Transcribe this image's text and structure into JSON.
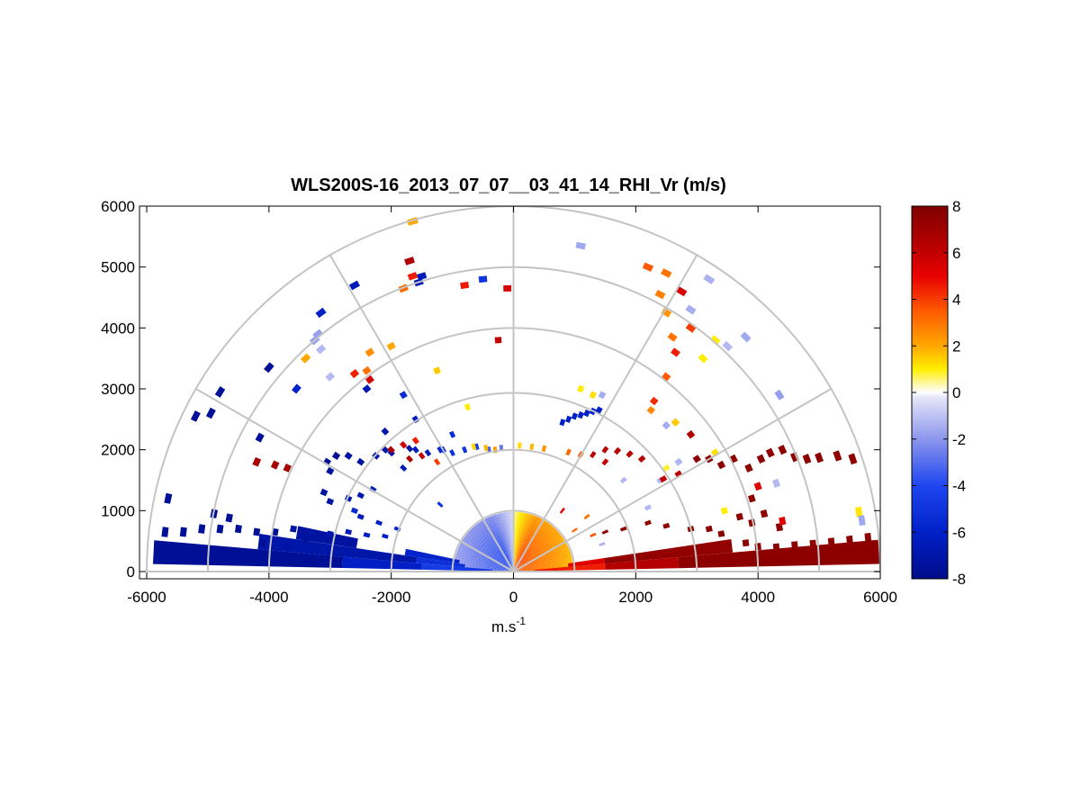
{
  "chart_data": {
    "type": "heatmap",
    "subtype": "polar-rhi-scan",
    "title": "WLS200S-16_2013_07_07__03_41_14_RHI_Vr (m/s)",
    "xlabel_base": "m.s",
    "xlabel_exponent": "-1",
    "ylabel": "",
    "xlim": [
      -6000,
      6000
    ],
    "ylim": [
      0,
      6000
    ],
    "xticks": [
      -6000,
      -4000,
      -2000,
      0,
      2000,
      4000,
      6000
    ],
    "yticks": [
      0,
      1000,
      2000,
      3000,
      4000,
      5000,
      6000
    ],
    "xtick_labels": [
      "-6000",
      "-4000",
      "-2000",
      "0",
      "2000",
      "4000",
      "6000"
    ],
    "ytick_labels": [
      "0",
      "1000",
      "2000",
      "3000",
      "4000",
      "5000",
      "6000"
    ],
    "range_rings_m": [
      1000,
      2000,
      3000,
      4000,
      5000,
      6000
    ],
    "spokes_deg": [
      30,
      60,
      90,
      120,
      150
    ],
    "colorbar": {
      "min": -8,
      "max": 8,
      "ticks": [
        8,
        6,
        4,
        2,
        0,
        -2,
        -4,
        -6,
        -8
      ],
      "tick_labels": [
        "8",
        "6",
        "4",
        "2",
        "0",
        "-2",
        "-4",
        "-6",
        "-8"
      ],
      "stops": [
        {
          "v": -8,
          "c": "#000c8a"
        },
        {
          "v": -6,
          "c": "#0020c8"
        },
        {
          "v": -4,
          "c": "#1e46f0"
        },
        {
          "v": -2,
          "c": "#8c96ec"
        },
        {
          "v": -0.2,
          "c": "#e6e6f8"
        },
        {
          "v": 0,
          "c": "#ffffff"
        },
        {
          "v": 0.4,
          "c": "#fff6a0"
        },
        {
          "v": 1,
          "c": "#ffee00"
        },
        {
          "v": 2,
          "c": "#ffa800"
        },
        {
          "v": 3.5,
          "c": "#ff5a00"
        },
        {
          "v": 5,
          "c": "#e80000"
        },
        {
          "v": 6.5,
          "c": "#b00000"
        },
        {
          "v": 8,
          "c": "#800000"
        }
      ]
    },
    "near_field": {
      "angle_min_deg": 2,
      "angle_max_deg": 178,
      "angle_step_deg": 3,
      "r_min_m": 30,
      "r_max_m": 950,
      "r_step_m": 50,
      "v_right": 4.5,
      "v_left": -4.5
    },
    "low_wedges": [
      {
        "a0": 1.2,
        "a1": 5.0,
        "r0": 350,
        "r1": 1500,
        "v": 4.5
      },
      {
        "a0": 1.2,
        "a1": 5.0,
        "r0": 1500,
        "r1": 2700,
        "v": 6.4
      },
      {
        "a0": 1.2,
        "a1": 5.0,
        "r0": 2700,
        "r1": 6000,
        "v": 7.6
      },
      {
        "a0": 5.0,
        "a1": 8.5,
        "r0": 900,
        "r1": 1500,
        "v": 5.2
      },
      {
        "a0": 5.0,
        "a1": 8.5,
        "r0": 1500,
        "r1": 3600,
        "v": 7.4
      },
      {
        "a0": 175.0,
        "a1": 178.8,
        "r0": 350,
        "r1": 1500,
        "v": -4.6
      },
      {
        "a0": 175.0,
        "a1": 178.8,
        "r0": 1500,
        "r1": 2800,
        "v": -6.1
      },
      {
        "a0": 175.0,
        "a1": 178.8,
        "r0": 2800,
        "r1": 5900,
        "v": -7.6
      },
      {
        "a0": 171.5,
        "a1": 175.0,
        "r0": 800,
        "r1": 1600,
        "v": -5.2
      },
      {
        "a0": 171.5,
        "a1": 175.0,
        "r0": 1600,
        "r1": 4200,
        "v": -7.0
      },
      {
        "a0": 168.0,
        "a1": 171.5,
        "r0": 900,
        "r1": 1800,
        "v": -5.8
      },
      {
        "a0": 168.0,
        "a1": 171.5,
        "r0": 2600,
        "r1": 3600,
        "v": -7.3
      }
    ],
    "range_gates": [
      {
        "x": 5800,
        "y": 550,
        "v": 7.6
      },
      {
        "x": 5500,
        "y": 510,
        "v": 7.6
      },
      {
        "x": 5200,
        "y": 480,
        "v": 7.6
      },
      {
        "x": 4900,
        "y": 450,
        "v": 7.6
      },
      {
        "x": 4600,
        "y": 430,
        "v": 7.6
      },
      {
        "x": 4300,
        "y": 400,
        "v": 7.6
      },
      {
        "x": 4000,
        "y": 410,
        "v": 7.6
      },
      {
        "x": 3800,
        "y": 470,
        "v": 7.6
      },
      {
        "x": 3400,
        "y": 620,
        "v": 7.6
      },
      {
        "x": 3200,
        "y": 700,
        "v": 7.6
      },
      {
        "x": 2900,
        "y": 700,
        "v": 7.6
      },
      {
        "x": 2500,
        "y": 750,
        "v": 7.6
      },
      {
        "x": 2200,
        "y": 800,
        "v": 7.6
      },
      {
        "x": 1800,
        "y": 700,
        "v": 7.6
      },
      {
        "x": 1500,
        "y": 650,
        "v": 7.3
      },
      {
        "x": 3700,
        "y": 900,
        "v": 7.6
      },
      {
        "x": 3900,
        "y": 1200,
        "v": 7.6
      },
      {
        "x": 3850,
        "y": 1700,
        "v": 7.6
      },
      {
        "x": 4050,
        "y": 1850,
        "v": 7.6
      },
      {
        "x": 4200,
        "y": 1950,
        "v": 7.6
      },
      {
        "x": 4400,
        "y": 2000,
        "v": 7.6
      },
      {
        "x": 4600,
        "y": 1880,
        "v": 7.6
      },
      {
        "x": 4800,
        "y": 1850,
        "v": 7.6
      },
      {
        "x": 5000,
        "y": 1870,
        "v": 7.6
      },
      {
        "x": 5300,
        "y": 1900,
        "v": 7.6
      },
      {
        "x": 5550,
        "y": 1850,
        "v": 7.6
      },
      {
        "x": 3600,
        "y": 1850,
        "v": 7.6
      },
      {
        "x": 3400,
        "y": 1750,
        "v": 7.6
      },
      {
        "x": 3200,
        "y": 1850,
        "v": 7.6
      },
      {
        "x": 3000,
        "y": 1850,
        "v": 7.6
      },
      {
        "x": 3900,
        "y": 800,
        "v": 7.6
      },
      {
        "x": 4350,
        "y": 730,
        "v": 7.6
      },
      {
        "x": 4100,
        "y": 950,
        "v": 7.6
      },
      {
        "x": 1500,
        "y": 2000,
        "v": 6.3
      },
      {
        "x": 1700,
        "y": 1980,
        "v": 6.3
      },
      {
        "x": 1900,
        "y": 1930,
        "v": 6.3
      },
      {
        "x": 2100,
        "y": 1850,
        "v": 6.3
      },
      {
        "x": 1300,
        "y": 1920,
        "v": 6.3
      },
      {
        "x": 900,
        "y": 1960,
        "v": 3.2
      },
      {
        "x": 1100,
        "y": 1920,
        "v": 3.5
      },
      {
        "x": 500,
        "y": 2020,
        "v": 2.4
      },
      {
        "x": 300,
        "y": 2050,
        "v": 1.8
      },
      {
        "x": 100,
        "y": 2070,
        "v": 1.3
      },
      {
        "x": 5650,
        "y": 980,
        "v": 1.1
      },
      {
        "x": 5700,
        "y": 840,
        "v": -1.6
      },
      {
        "x": 4400,
        "y": 830,
        "v": 5.2
      },
      {
        "x": 4000,
        "y": 1400,
        "v": 5.3
      },
      {
        "x": 1300,
        "y": 600,
        "v": 3.6
      },
      {
        "x": 1000,
        "y": 680,
        "v": 3.2
      },
      {
        "x": -5700,
        "y": 650,
        "v": -7.6
      },
      {
        "x": -5400,
        "y": 650,
        "v": -7.6
      },
      {
        "x": -5100,
        "y": 700,
        "v": -7.6
      },
      {
        "x": -4800,
        "y": 700,
        "v": -7.6
      },
      {
        "x": -4500,
        "y": 700,
        "v": -7.6
      },
      {
        "x": -4200,
        "y": 650,
        "v": -7.6
      },
      {
        "x": -3900,
        "y": 650,
        "v": -7.6
      },
      {
        "x": -3600,
        "y": 700,
        "v": -7.2
      },
      {
        "x": -3300,
        "y": 650,
        "v": -7.0
      },
      {
        "x": -3000,
        "y": 620,
        "v": -6.8
      },
      {
        "x": -2700,
        "y": 650,
        "v": -6.5
      },
      {
        "x": -2400,
        "y": 600,
        "v": -6.3
      },
      {
        "x": -2100,
        "y": 580,
        "v": -6.0
      },
      {
        "x": -1900,
        "y": 700,
        "v": -5.8
      },
      {
        "x": -2200,
        "y": 800,
        "v": -6.3
      },
      {
        "x": -2500,
        "y": 900,
        "v": -6.5
      },
      {
        "x": -4900,
        "y": 950,
        "v": -7.6
      },
      {
        "x": -4650,
        "y": 880,
        "v": -7.6
      },
      {
        "x": -3700,
        "y": 400,
        "v": -7.3
      },
      {
        "x": -3400,
        "y": 480,
        "v": -7.3
      },
      {
        "x": -4100,
        "y": 470,
        "v": -7.6
      },
      {
        "x": -5650,
        "y": 1200,
        "v": -7.6
      },
      {
        "x": -5200,
        "y": 2550,
        "v": -7.6
      },
      {
        "x": -4950,
        "y": 2600,
        "v": -7.6
      },
      {
        "x": -4800,
        "y": 2950,
        "v": -7.6
      },
      {
        "x": -4000,
        "y": 3350,
        "v": -7.6
      },
      {
        "x": -4150,
        "y": 2200,
        "v": -7.6
      },
      {
        "x": -3050,
        "y": 1800,
        "v": -7.5
      },
      {
        "x": -3000,
        "y": 1650,
        "v": -7.5
      },
      {
        "x": -2500,
        "y": 1800,
        "v": -7.3
      },
      {
        "x": -2250,
        "y": 1900,
        "v": -7.0
      },
      {
        "x": -2100,
        "y": 2000,
        "v": -7.0
      },
      {
        "x": -2000,
        "y": 1950,
        "v": -7.0
      },
      {
        "x": -1700,
        "y": 2020,
        "v": -7.0
      },
      {
        "x": -1200,
        "y": 2000,
        "v": -5.5
      },
      {
        "x": -1000,
        "y": 1950,
        "v": -5.0
      },
      {
        "x": -800,
        "y": 2000,
        "v": -4.8
      },
      {
        "x": -600,
        "y": 2050,
        "v": -4.5
      },
      {
        "x": -400,
        "y": 2000,
        "v": -3.5
      },
      {
        "x": -200,
        "y": 2030,
        "v": -2.8
      },
      {
        "x": -2700,
        "y": 1200,
        "v": -7.0
      },
      {
        "x": -2500,
        "y": 1250,
        "v": -6.8
      },
      {
        "x": -3000,
        "y": 1150,
        "v": -7.2
      },
      {
        "x": -3100,
        "y": 1300,
        "v": -7.2
      },
      {
        "x": -2300,
        "y": 1350,
        "v": -6.5
      },
      {
        "x": -1600,
        "y": 2500,
        "v": -6.2
      },
      {
        "x": -1800,
        "y": 1700,
        "v": -6.5
      },
      {
        "x": -2100,
        "y": 2300,
        "v": -7.0
      },
      {
        "x": -1000,
        "y": 2250,
        "v": -5.5
      },
      {
        "x": -2600,
        "y": 1000,
        "v": -5.5
      },
      {
        "x": -1200,
        "y": 1100,
        "v": -5.0
      },
      {
        "x": -3150,
        "y": 4250,
        "v": -6.0
      },
      {
        "x": -3550,
        "y": 3000,
        "v": -6.0
      },
      {
        "x": -2600,
        "y": 4700,
        "v": -6.5
      },
      {
        "x": -1500,
        "y": 4850,
        "v": -6.5
      },
      {
        "x": -1550,
        "y": 4750,
        "v": -6.5
      },
      {
        "x": -500,
        "y": 4800,
        "v": -5.0
      },
      {
        "x": -2400,
        "y": 3000,
        "v": -6.8
      },
      {
        "x": -3200,
        "y": 3900,
        "v": -1.8
      },
      {
        "x": -3250,
        "y": 3800,
        "v": -1.8
      },
      {
        "x": -3000,
        "y": 3200,
        "v": -1.2
      },
      {
        "x": -3150,
        "y": 3650,
        "v": -1.2
      },
      {
        "x": 1100,
        "y": 5350,
        "v": -1.6
      },
      {
        "x": 3200,
        "y": 4800,
        "v": -1.4
      },
      {
        "x": 3800,
        "y": 3850,
        "v": -1.6
      },
      {
        "x": 2900,
        "y": 4300,
        "v": -1.5
      },
      {
        "x": 3500,
        "y": 3700,
        "v": -1.2
      },
      {
        "x": 4350,
        "y": 2900,
        "v": -1.8
      },
      {
        "x": 1450,
        "y": 2900,
        "v": -1.5
      },
      {
        "x": 2500,
        "y": 2400,
        "v": -1.5
      },
      {
        "x": 1800,
        "y": 1500,
        "v": -1.2
      },
      {
        "x": 4300,
        "y": 1450,
        "v": -1.2
      },
      {
        "x": 2200,
        "y": 1050,
        "v": -1.2
      },
      {
        "x": 2400,
        "y": 1500,
        "v": -1.3
      },
      {
        "x": 2700,
        "y": 1800,
        "v": -1.3
      },
      {
        "x": -1800,
        "y": 2900,
        "v": -5.5
      },
      {
        "x": -2900,
        "y": 1900,
        "v": -7.6
      },
      {
        "x": -2700,
        "y": 1900,
        "v": -7.2
      },
      {
        "x": 800,
        "y": 2450,
        "v": -6.0
      },
      {
        "x": 1000,
        "y": 2550,
        "v": -6.0
      },
      {
        "x": 1200,
        "y": 2600,
        "v": -6.0
      },
      {
        "x": 1400,
        "y": 2650,
        "v": -6.0
      },
      {
        "x": 900,
        "y": 2500,
        "v": -6.0
      },
      {
        "x": 1100,
        "y": 2570,
        "v": -6.0
      },
      {
        "x": 1300,
        "y": 2630,
        "v": -6.0
      },
      {
        "x": -1150,
        "y": 2000,
        "v": -5.5
      },
      {
        "x": -1400,
        "y": 1950,
        "v": -6.5
      },
      {
        "x": -1600,
        "y": 2000,
        "v": -6.5
      },
      {
        "x": 1450,
        "y": 450,
        "v": -1.3
      },
      {
        "x": -4200,
        "y": 1800,
        "v": 6.8
      },
      {
        "x": -3900,
        "y": 1750,
        "v": 6.8
      },
      {
        "x": -3700,
        "y": 1700,
        "v": 6.8
      },
      {
        "x": -2350,
        "y": 3600,
        "v": 2.5
      },
      {
        "x": -2400,
        "y": 3300,
        "v": 3.0
      },
      {
        "x": -2350,
        "y": 3150,
        "v": 5.5
      },
      {
        "x": -2600,
        "y": 3250,
        "v": 4.5
      },
      {
        "x": -3400,
        "y": 3500,
        "v": 2.0
      },
      {
        "x": -1800,
        "y": 4650,
        "v": 3.2
      },
      {
        "x": -800,
        "y": 4700,
        "v": 4.6
      },
      {
        "x": -1250,
        "y": 3300,
        "v": 1.5
      },
      {
        "x": -1650,
        "y": 4850,
        "v": 4.5
      },
      {
        "x": -1700,
        "y": 5100,
        "v": 6.5
      },
      {
        "x": 2200,
        "y": 5000,
        "v": 3.5
      },
      {
        "x": 2500,
        "y": 4900,
        "v": 3.0
      },
      {
        "x": 2400,
        "y": 4550,
        "v": 2.8
      },
      {
        "x": -2000,
        "y": 3700,
        "v": 2.0
      },
      {
        "x": -1650,
        "y": 5750,
        "v": 2.0
      },
      {
        "x": -100,
        "y": 4650,
        "v": 5.5
      },
      {
        "x": -250,
        "y": 3800,
        "v": 6.0
      },
      {
        "x": 2500,
        "y": 4250,
        "v": 2.4
      },
      {
        "x": 2600,
        "y": 3850,
        "v": 3.0
      },
      {
        "x": 2650,
        "y": 3600,
        "v": 4.5
      },
      {
        "x": 2750,
        "y": 4600,
        "v": 5.5
      },
      {
        "x": 2900,
        "y": 4000,
        "v": 4.0
      },
      {
        "x": 2300,
        "y": 2800,
        "v": 4.3
      },
      {
        "x": 2250,
        "y": 2650,
        "v": 2.6
      },
      {
        "x": 2650,
        "y": 2450,
        "v": 1.5
      },
      {
        "x": 2900,
        "y": 2250,
        "v": 6.5
      },
      {
        "x": 3300,
        "y": 3800,
        "v": 1.0
      },
      {
        "x": 3100,
        "y": 3500,
        "v": 1.0
      },
      {
        "x": 2500,
        "y": 3200,
        "v": 3.5
      },
      {
        "x": 1300,
        "y": 2900,
        "v": 1.2
      },
      {
        "x": 1100,
        "y": 3000,
        "v": 1.0
      },
      {
        "x": -2000,
        "y": 2000,
        "v": 6.5
      },
      {
        "x": -1700,
        "y": 1850,
        "v": 6.5
      },
      {
        "x": -1800,
        "y": 2080,
        "v": 5.5
      },
      {
        "x": -1600,
        "y": 2150,
        "v": 4.5
      },
      {
        "x": -1250,
        "y": 1800,
        "v": 4.0
      },
      {
        "x": -1500,
        "y": 1900,
        "v": 6.0
      },
      {
        "x": -750,
        "y": 2700,
        "v": 1.0
      },
      {
        "x": -650,
        "y": 2050,
        "v": 1.4
      },
      {
        "x": -450,
        "y": 2030,
        "v": 1.8
      },
      {
        "x": -300,
        "y": 2000,
        "v": 2.3
      },
      {
        "x": 2450,
        "y": 1520,
        "v": 6.0
      },
      {
        "x": 2700,
        "y": 1600,
        "v": 6.2
      },
      {
        "x": 1500,
        "y": 1800,
        "v": 5.8
      },
      {
        "x": 800,
        "y": 1000,
        "v": 5.0
      },
      {
        "x": 1200,
        "y": 900,
        "v": 3.0
      },
      {
        "x": 3450,
        "y": 1000,
        "v": 1.0
      },
      {
        "x": 3300,
        "y": 1950,
        "v": 1.2
      },
      {
        "x": 2500,
        "y": 1700,
        "v": 0.8
      }
    ]
  }
}
